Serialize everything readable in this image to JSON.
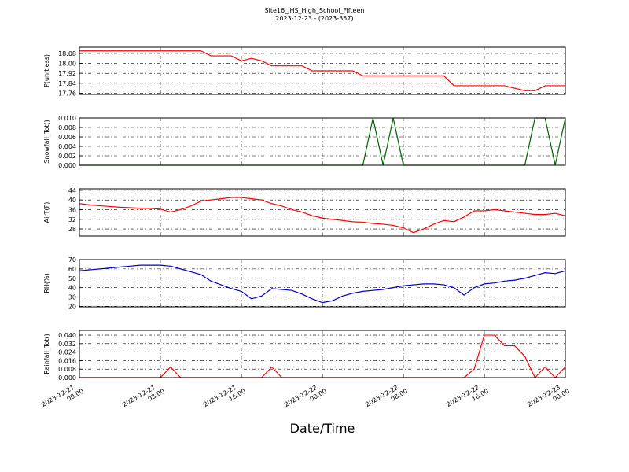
{
  "chart_data": {
    "type": "line",
    "title": "Site16_JHS_High_School_Fifteen",
    "subtitle": "2023-12-23 - (2023-357)",
    "xlabel": "Date/Time",
    "grid": true,
    "x": [
      "2023-12-21 00:00",
      "2023-12-21 01:00",
      "2023-12-21 02:00",
      "2023-12-21 03:00",
      "2023-12-21 04:00",
      "2023-12-21 05:00",
      "2023-12-21 06:00",
      "2023-12-21 07:00",
      "2023-12-21 08:00",
      "2023-12-21 09:00",
      "2023-12-21 10:00",
      "2023-12-21 11:00",
      "2023-12-21 12:00",
      "2023-12-21 13:00",
      "2023-12-21 14:00",
      "2023-12-21 15:00",
      "2023-12-21 16:00",
      "2023-12-21 17:00",
      "2023-12-21 18:00",
      "2023-12-21 19:00",
      "2023-12-21 20:00",
      "2023-12-21 21:00",
      "2023-12-21 22:00",
      "2023-12-21 23:00",
      "2023-12-22 00:00",
      "2023-12-22 01:00",
      "2023-12-22 02:00",
      "2023-12-22 03:00",
      "2023-12-22 04:00",
      "2023-12-22 05:00",
      "2023-12-22 06:00",
      "2023-12-22 07:00",
      "2023-12-22 08:00",
      "2023-12-22 09:00",
      "2023-12-22 10:00",
      "2023-12-22 11:00",
      "2023-12-22 12:00",
      "2023-12-22 13:00",
      "2023-12-22 14:00",
      "2023-12-22 15:00",
      "2023-12-22 16:00",
      "2023-12-22 17:00",
      "2023-12-22 18:00",
      "2023-12-22 19:00",
      "2023-12-22 20:00",
      "2023-12-22 21:00",
      "2023-12-22 22:00",
      "2023-12-22 23:00",
      "2023-12-23 00:00"
    ],
    "xlim": [
      "2023-12-21 00:00",
      "2023-12-23 00:00"
    ],
    "xticks": [
      "2023-12-21 00:00",
      "2023-12-21 08:00",
      "2023-12-21 16:00",
      "2023-12-22 00:00",
      "2023-12-22 08:00",
      "2023-12-22 16:00",
      "2023-12-23 00:00"
    ],
    "panels": [
      {
        "ylabel": "P(unitless)",
        "ylim": [
          17.75,
          18.13
        ],
        "yticks": [
          17.76,
          17.84,
          17.92,
          {
            "value": 18,
            "label": "18.00"
          },
          18.08
        ],
        "series": [
          {
            "color": "#ff0000",
            "values": [
              18.1,
              18.1,
              18.1,
              18.1,
              18.1,
              18.1,
              18.1,
              18.1,
              18.1,
              18.1,
              18.1,
              18.1,
              18.1,
              18.06,
              18.06,
              18.06,
              18.02,
              18.04,
              18.02,
              17.98,
              17.98,
              17.98,
              17.98,
              17.94,
              17.94,
              17.94,
              17.94,
              17.94,
              17.9,
              17.9,
              17.9,
              17.9,
              17.9,
              17.9,
              17.9,
              17.9,
              17.9,
              17.82,
              17.82,
              17.82,
              17.82,
              17.82,
              17.82,
              17.8,
              17.78,
              17.78,
              17.82,
              17.82,
              17.82
            ]
          }
        ]
      },
      {
        "ylabel": "Snowfall_Tot()",
        "ylim": [
          0,
          0.01
        ],
        "yticks": [
          {
            "value": 0,
            "label": "0.000"
          },
          {
            "value": 0.002,
            "label": "0.002"
          },
          {
            "value": 0.004,
            "label": "0.004"
          },
          {
            "value": 0.006,
            "label": "0.006"
          },
          {
            "value": 0.008,
            "label": "0.008"
          },
          {
            "value": 0.01,
            "label": "0.010"
          }
        ],
        "series": [
          {
            "color": "#006400",
            "values": [
              0,
              0,
              0,
              0,
              0,
              0,
              0,
              0,
              0,
              0,
              0,
              0,
              0,
              0,
              0,
              0,
              0,
              0,
              0,
              0,
              0,
              0,
              0,
              0,
              0,
              0,
              0,
              0,
              0,
              0.01,
              0,
              0.01,
              0,
              0,
              0,
              0,
              0,
              0,
              0,
              0,
              0,
              0,
              0,
              0,
              0,
              0.01,
              0.01,
              0,
              0.01
            ]
          }
        ]
      },
      {
        "ylabel": "AirT(F)",
        "ylim": [
          25.1,
          44.6
        ],
        "yticks": [
          28,
          32,
          36,
          40,
          44
        ],
        "series": [
          {
            "color": "#ff0000",
            "values": [
              38.5,
              38,
              37.6,
              37.3,
              37,
              36.8,
              36.6,
              36.5,
              36.2,
              35,
              36,
              37.5,
              39.5,
              40,
              40.5,
              41,
              41,
              40.5,
              40,
              38.5,
              37.5,
              36,
              35,
              33.5,
              32.5,
              32,
              31.5,
              31,
              30.8,
              30.3,
              30,
              29.5,
              28.5,
              26.5,
              28,
              30,
              31.5,
              31,
              33,
              35.5,
              35.5,
              36,
              35.5,
              35,
              34.5,
              34,
              34,
              34.5,
              33.5
            ]
          }
        ]
      },
      {
        "ylabel": "RH(%)",
        "ylim": [
          19.5,
          70
        ],
        "yticks": [
          20,
          30,
          40,
          50,
          60,
          70
        ],
        "series": [
          {
            "color": "#0000cc",
            "values": [
              58,
              59,
              60,
              61,
              62,
              63,
              64,
              64,
              64,
              63,
              60,
              57,
              54,
              47,
              43,
              39,
              36,
              28,
              31,
              39,
              38,
              37,
              33,
              28,
              24,
              26,
              31,
              34,
              36,
              37,
              38,
              40,
              42,
              43,
              44,
              44,
              43,
              40,
              32,
              40,
              44,
              45,
              47,
              48,
              50,
              53,
              56,
              55,
              58
            ]
          }
        ]
      },
      {
        "ylabel": "Rainfall_Tot()",
        "ylim": [
          0,
          0.0445
        ],
        "yticks": [
          {
            "value": 0,
            "label": "0.000"
          },
          {
            "value": 0.008,
            "label": "0.008"
          },
          {
            "value": 0.016,
            "label": "0.016"
          },
          {
            "value": 0.024,
            "label": "0.024"
          },
          {
            "value": 0.032,
            "label": "0.032"
          },
          {
            "value": 0.04,
            "label": "0.040"
          }
        ],
        "series": [
          {
            "color": "#ff0000",
            "values": [
              0,
              0,
              0,
              0,
              0,
              0,
              0,
              0,
              0,
              0.01,
              0,
              0,
              0,
              0,
              0,
              0,
              0,
              0,
              0,
              0.01,
              0,
              0,
              0,
              0,
              0,
              0,
              0,
              0,
              0,
              0,
              0,
              0,
              0,
              0,
              0,
              0,
              0,
              0,
              0,
              0.008,
              0.04,
              0.04,
              0.03,
              0.03,
              0.02,
              0,
              0.01,
              0,
              0.01
            ]
          }
        ]
      }
    ]
  }
}
